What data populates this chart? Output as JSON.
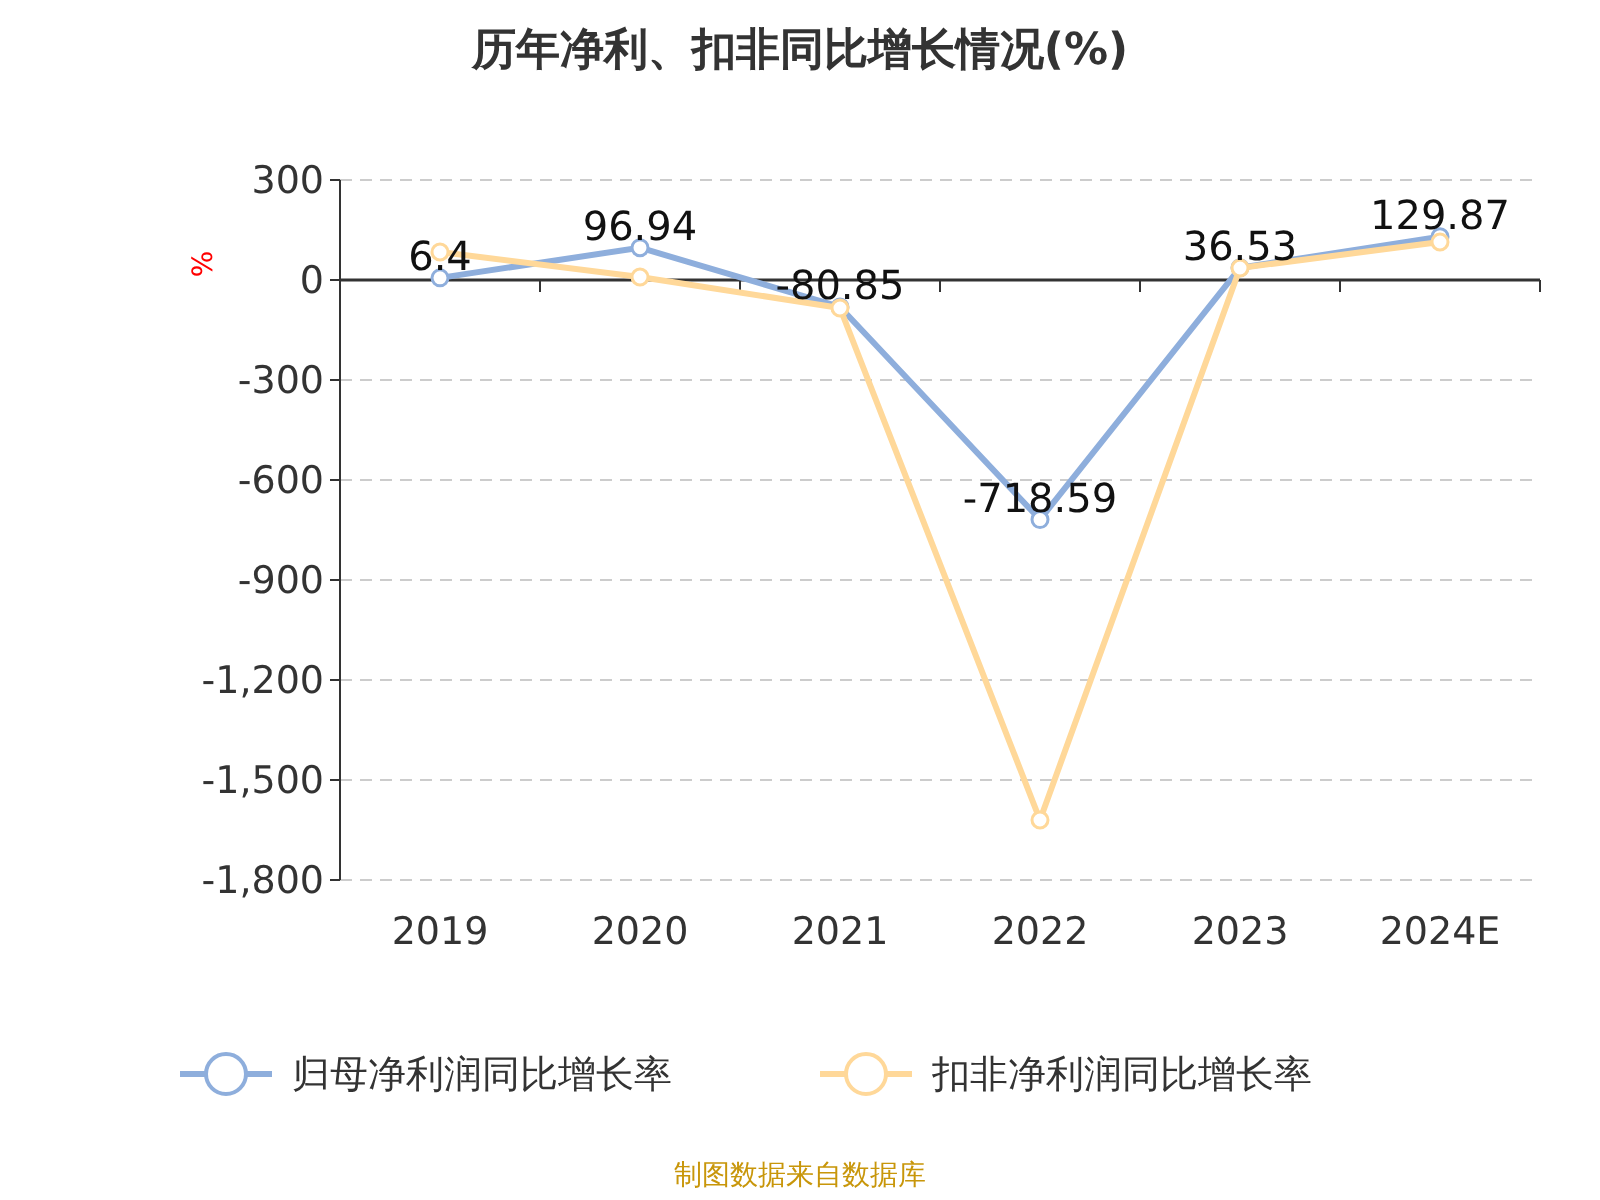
{
  "chart_data": {
    "type": "line",
    "title": "历年净利、扣非同比增长情况(%)",
    "ylabel": "%",
    "categories": [
      "2019",
      "2020",
      "2021",
      "2022",
      "2023",
      "2024E"
    ],
    "series": [
      {
        "name": "归母净利润同比增长率",
        "color": "#8eaedc",
        "values": [
          6.4,
          96.94,
          -80.85,
          -718.59,
          36.53,
          129.87
        ],
        "value_labels": [
          "6.4",
          "96.94",
          "-80.85",
          "-718.59",
          "36.53",
          "129.87"
        ]
      },
      {
        "name": "扣非净利润同比增长率",
        "color": "#ffd899",
        "values": [
          84,
          9,
          -84,
          -1620,
          36,
          114
        ]
      }
    ],
    "ylim": [
      -1800,
      300
    ],
    "yticks": [
      {
        "value": 300,
        "label": "300"
      },
      {
        "value": 0,
        "label": "0"
      },
      {
        "value": -300,
        "label": "-300"
      },
      {
        "value": -600,
        "label": "-600"
      },
      {
        "value": -900,
        "label": "-900"
      },
      {
        "value": -1200,
        "label": "-1,200"
      },
      {
        "value": -1500,
        "label": "-1,500"
      },
      {
        "value": -1800,
        "label": "-1,800"
      }
    ],
    "grid": "y",
    "legend": "bottom",
    "marker": "circle",
    "line_style": "solid",
    "annotations": [
      "制图数据来自数据库"
    ]
  }
}
